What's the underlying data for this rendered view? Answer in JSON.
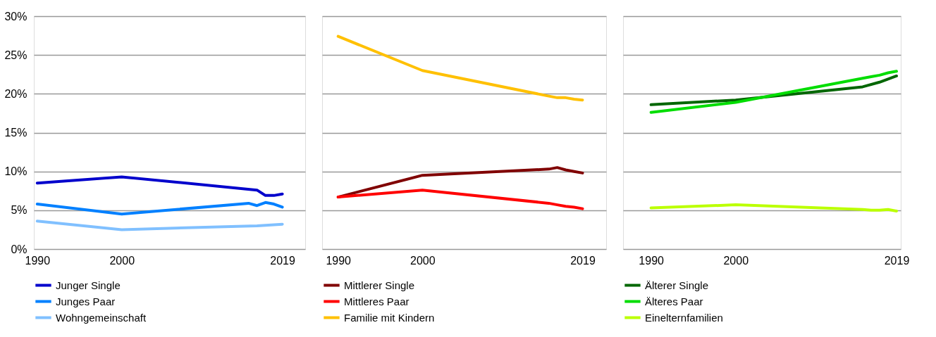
{
  "chart_data": [
    {
      "type": "line",
      "xlim": [
        1989.6,
        2021.7
      ],
      "xticks": [
        1990,
        2000,
        2019
      ],
      "ylim": [
        0,
        30
      ],
      "yticks": [
        {
          "value": 0,
          "label": "0%"
        },
        {
          "value": 5,
          "label": "5%"
        },
        {
          "value": 10,
          "label": "10%"
        },
        {
          "value": 15,
          "label": "15%"
        },
        {
          "value": 20,
          "label": "20%"
        },
        {
          "value": 25,
          "label": "25%"
        },
        {
          "value": 30,
          "label": "30%"
        }
      ],
      "grid": "y",
      "legend": "bottom",
      "line_style": "solid",
      "series": [
        {
          "name": "Junger Single",
          "color": "#0000cc",
          "x": [
            1990,
            2000,
            2016,
            2017,
            2018,
            2019
          ],
          "values": [
            8.5,
            9.3,
            7.6,
            6.9,
            6.9,
            7.1
          ]
        },
        {
          "name": "Junges Paar",
          "color": "#0080ff",
          "x": [
            1990,
            2000,
            2015,
            2016,
            2017,
            2018,
            2019
          ],
          "values": [
            5.8,
            4.5,
            5.9,
            5.6,
            6.0,
            5.8,
            5.4
          ]
        },
        {
          "name": "Wohngemeinschaft",
          "color": "#80c0ff",
          "x": [
            1990,
            2000,
            2016,
            2019
          ],
          "values": [
            3.6,
            2.5,
            3.0,
            3.2
          ]
        }
      ]
    },
    {
      "type": "line",
      "xlim": [
        1988.1,
        2021.8
      ],
      "xticks": [
        1990,
        2000,
        2019
      ],
      "ylim": [
        0,
        30
      ],
      "yticks": [
        0,
        5,
        10,
        15,
        20,
        25,
        30
      ],
      "grid": "y",
      "legend": "bottom",
      "line_style": "solid",
      "tick_labels": "x",
      "series": [
        {
          "name": "Mittlerer Single",
          "color": "#800000",
          "x": [
            1990,
            2000,
            2015,
            2016,
            2017,
            2018,
            2019
          ],
          "values": [
            6.7,
            9.5,
            10.3,
            10.5,
            10.2,
            10.0,
            9.8
          ]
        },
        {
          "name": "Mittleres Paar",
          "color": "#ff0000",
          "x": [
            1990,
            2000,
            2015,
            2016,
            2017,
            2018,
            2019
          ],
          "values": [
            6.7,
            7.6,
            5.9,
            5.7,
            5.5,
            5.4,
            5.2
          ]
        },
        {
          "name": "Familie mit Kindern",
          "color": "#ffc000",
          "x": [
            1990,
            2000,
            2015,
            2016,
            2017,
            2018,
            2019
          ],
          "values": [
            27.4,
            23.0,
            19.7,
            19.5,
            19.5,
            19.3,
            19.2
          ]
        }
      ]
    },
    {
      "type": "line",
      "xlim": [
        1986.7,
        2019.5
      ],
      "xticks": [
        1990,
        2000,
        2019
      ],
      "ylim": [
        0,
        30
      ],
      "yticks": [
        0,
        5,
        10,
        15,
        20,
        25,
        30
      ],
      "grid": "y",
      "legend": "bottom",
      "line_style": "solid",
      "tick_labels": "x",
      "series": [
        {
          "name": "Älterer Single",
          "color": "#006600",
          "x": [
            1990,
            2000,
            2015,
            2017,
            2018,
            2019
          ],
          "values": [
            18.6,
            19.2,
            20.9,
            21.5,
            21.9,
            22.3
          ]
        },
        {
          "name": "Älteres Paar",
          "color": "#00dd00",
          "x": [
            1990,
            2000,
            2015,
            2016,
            2017,
            2018,
            2019
          ],
          "values": [
            17.6,
            18.9,
            22.0,
            22.2,
            22.4,
            22.7,
            22.9
          ]
        },
        {
          "name": "Einelternfamilien",
          "color": "#bbff00",
          "x": [
            1990,
            2000,
            2015,
            2016,
            2017,
            2018,
            2019
          ],
          "values": [
            5.3,
            5.7,
            5.1,
            5.0,
            5.0,
            5.1,
            4.9
          ]
        }
      ]
    }
  ]
}
